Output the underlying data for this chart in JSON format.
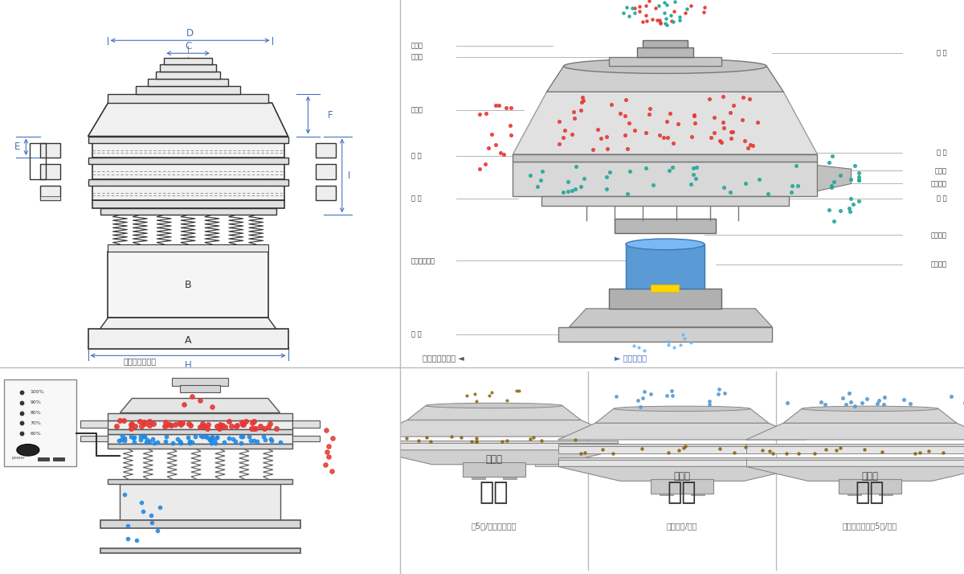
{
  "bg_color": "#ffffff",
  "divider_color": "#cccccc",
  "dim_color": "#4472c4",
  "gray_dark": "#444444",
  "gray_mid": "#888888",
  "gray_light": "#cccccc",
  "red_color": "#e53935",
  "blue_color": "#1e88e5",
  "teal_color": "#26a69a",
  "left_labels": [
    "进料口",
    "防尘盖",
    "出料口",
    "束 环",
    "弹 簧",
    "运输固定螺格",
    "机 座"
  ],
  "right_labels": [
    "筛 网",
    "网 架",
    "加重块",
    "上部重锤",
    "筛 盘",
    "振动电机",
    "下部重锤"
  ],
  "outline_text": "外形尺寸示意图",
  "struct_text": "结构示意图",
  "section1_title": "单层式",
  "section2_title": "三层式",
  "section3_title": "双层式",
  "cat1_title": "分级",
  "cat2_title": "过滤",
  "cat3_title": "除杂",
  "cat1_sub": "須5粒/粉末准确分级",
  "cat2_sub": "去除异物/结块",
  "cat3_sub": "去除液体中的須5粒/异物"
}
